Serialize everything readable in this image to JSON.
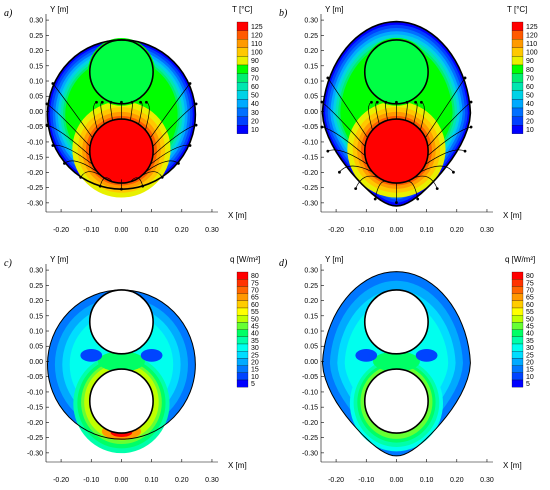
{
  "chart_data": [
    {
      "panel": "a)",
      "type": "heatmap",
      "field": "temperature",
      "xlabel": "X [m]",
      "ylabel": "Y [m]",
      "xlim": [
        -0.25,
        0.32
      ],
      "ylim": [
        -0.33,
        0.32
      ],
      "xticks": [
        "-0.20",
        "-0.10",
        "0.00",
        "0.10",
        "0.20",
        "0.30"
      ],
      "yticks": [
        "0.30",
        "0.25",
        "0.20",
        "0.15",
        "0.10",
        "0.05",
        "0.00",
        "-0.05",
        "-0.10",
        "-0.15",
        "-0.20",
        "-0.25",
        "-0.30"
      ],
      "colorbar": {
        "title": "T [°C]",
        "levels": [
          "125",
          "120",
          "110",
          "100",
          "90",
          "80",
          "70",
          "60",
          "50",
          "40",
          "30",
          "20",
          "10"
        ]
      },
      "domain_shape": "circle",
      "hot_pipe_center": [
        0.0,
        -0.13
      ],
      "cold_pipe_center": [
        0.0,
        0.13
      ],
      "pipe_radius": 0.105,
      "hot_pipe_T": 125,
      "cold_pipe_T": 85,
      "vectors": "heat flux arrows"
    },
    {
      "panel": "b)",
      "type": "heatmap",
      "field": "temperature",
      "xlabel": "X [m]",
      "ylabel": "Y [m]",
      "xlim": [
        -0.25,
        0.32
      ],
      "ylim": [
        -0.33,
        0.32
      ],
      "xticks": [
        "-0.20",
        "-0.10",
        "0.00",
        "0.10",
        "0.20",
        "0.30"
      ],
      "yticks": [
        "0.30",
        "0.25",
        "0.20",
        "0.15",
        "0.10",
        "0.05",
        "0.00",
        "-0.05",
        "-0.10",
        "-0.15",
        "-0.20",
        "-0.25",
        "-0.30"
      ],
      "colorbar": {
        "title": "T [°C]",
        "levels": [
          "125",
          "120",
          "110",
          "100",
          "90",
          "80",
          "70",
          "60",
          "50",
          "40",
          "30",
          "20",
          "10"
        ]
      },
      "domain_shape": "egg",
      "hot_pipe_center": [
        0.0,
        -0.13
      ],
      "cold_pipe_center": [
        0.0,
        0.13
      ],
      "pipe_radius": 0.105,
      "hot_pipe_T": 125,
      "cold_pipe_T": 85,
      "vectors": "heat flux arrows"
    },
    {
      "panel": "c)",
      "type": "heatmap",
      "field": "heat flux density",
      "xlabel": "X [m]",
      "ylabel": "Y [m]",
      "xlim": [
        -0.25,
        0.32
      ],
      "ylim": [
        -0.33,
        0.32
      ],
      "xticks": [
        "-0.20",
        "-0.10",
        "0.00",
        "0.10",
        "0.20",
        "0.30"
      ],
      "yticks": [
        "0.30",
        "0.25",
        "0.20",
        "0.15",
        "0.10",
        "0.05",
        "0.00",
        "-0.05",
        "-0.10",
        "-0.15",
        "-0.20",
        "-0.25",
        "-0.30"
      ],
      "colorbar": {
        "title": "q [W/m²]",
        "levels": [
          "80",
          "75",
          "70",
          "65",
          "60",
          "55",
          "50",
          "45",
          "40",
          "35",
          "30",
          "25",
          "20",
          "15",
          "10",
          "5"
        ]
      },
      "domain_shape": "circle",
      "hot_pipe_center": [
        0.0,
        -0.13
      ],
      "cold_pipe_center": [
        0.0,
        0.13
      ],
      "pipe_radius": 0.105,
      "max_q": 80
    },
    {
      "panel": "d)",
      "type": "heatmap",
      "field": "heat flux density",
      "xlabel": "X [m]",
      "ylabel": "Y [m]",
      "xlim": [
        -0.25,
        0.32
      ],
      "ylim": [
        -0.33,
        0.32
      ],
      "xticks": [
        "-0.20",
        "-0.10",
        "0.00",
        "0.10",
        "0.20",
        "0.30"
      ],
      "yticks": [
        "0.30",
        "0.25",
        "0.20",
        "0.15",
        "0.10",
        "0.05",
        "0.00",
        "-0.05",
        "-0.10",
        "-0.15",
        "-0.20",
        "-0.25",
        "-0.30"
      ],
      "colorbar": {
        "title": "q [W/m²]",
        "levels": [
          "80",
          "75",
          "70",
          "65",
          "60",
          "55",
          "50",
          "45",
          "40",
          "35",
          "30",
          "25",
          "20",
          "15",
          "10",
          "5"
        ]
      },
      "domain_shape": "egg",
      "hot_pipe_center": [
        0.0,
        -0.13
      ],
      "cold_pipe_center": [
        0.0,
        0.13
      ],
      "pipe_radius": 0.105,
      "max_q": 50
    }
  ],
  "colors": {
    "T": [
      "#ff0000",
      "#ff5a00",
      "#ff9a00",
      "#ffc800",
      "#e8f000",
      "#00ff00",
      "#00ee70",
      "#00e6b0",
      "#00d2e6",
      "#00aaff",
      "#0070ff",
      "#0040ff",
      "#0000ff"
    ],
    "q": [
      "#ff0000",
      "#ff3300",
      "#ff6600",
      "#ff9900",
      "#ffcc00",
      "#ffff00",
      "#bfff00",
      "#66ff33",
      "#00ff66",
      "#00ffaa",
      "#00ffee",
      "#00ddff",
      "#00aaff",
      "#0077ff",
      "#0044ff",
      "#0000ff"
    ]
  }
}
